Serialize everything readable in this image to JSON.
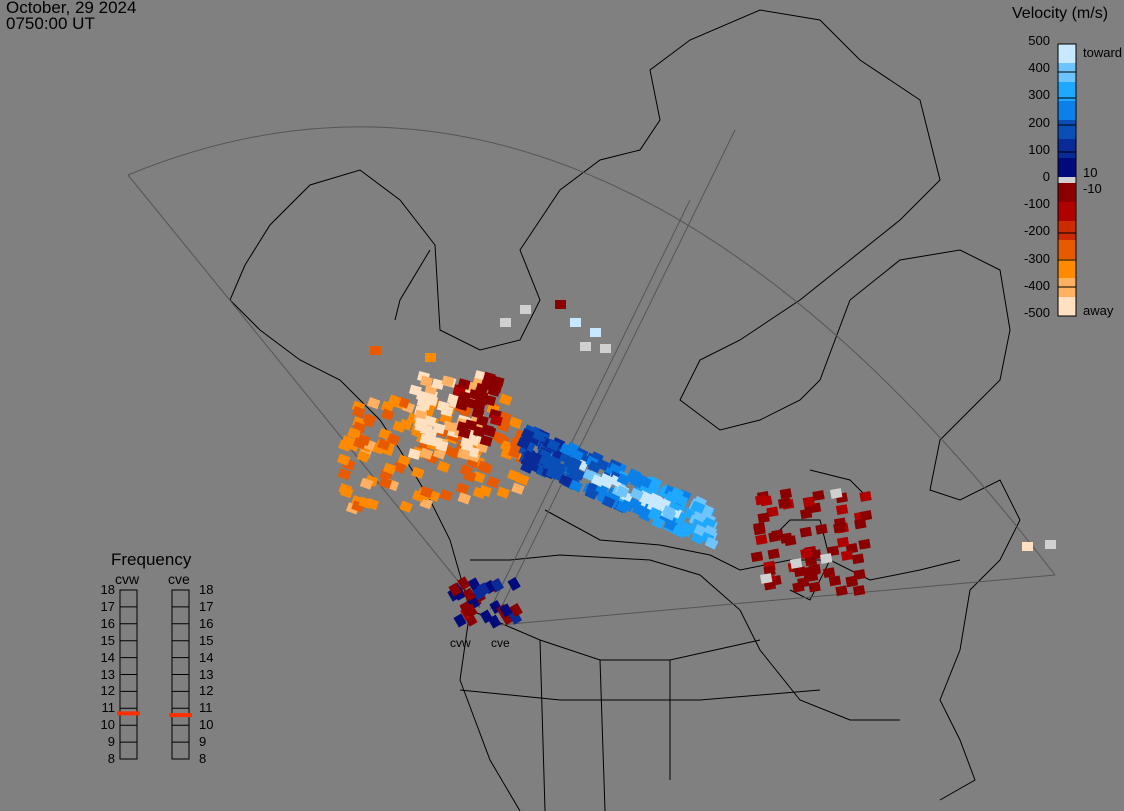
{
  "header": {
    "date": "October, 29 2024",
    "time": "0750:00 UT"
  },
  "colorbar": {
    "title": "Velocity (m/s)",
    "ticks": [
      "500",
      "400",
      "300",
      "200",
      "100",
      "0",
      "-100",
      "-200",
      "-300",
      "-400",
      "-500"
    ],
    "toward_label": "toward",
    "away_label": "away",
    "upper_threshold": "10",
    "lower_threshold": "-10",
    "colors_top_to_bottom": [
      "#c8e8ff",
      "#6ec4ff",
      "#1ea8ff",
      "#0a80e8",
      "#0a4fb8",
      "#0a2a98",
      "#000a7a",
      "#8a0000",
      "#b00000",
      "#cc2a00",
      "#e85a00",
      "#ff8a00",
      "#ffb060",
      "#ffe0c0"
    ],
    "ground_scatter_color": "#d0d0d0"
  },
  "frequency": {
    "title": "Frequency",
    "ticks": [
      "18",
      "17",
      "16",
      "15",
      "14",
      "13",
      "12",
      "11",
      "10",
      "9",
      "8"
    ],
    "radars": [
      {
        "name": "cvw",
        "value_mhz": 10.7
      },
      {
        "name": "cve",
        "value_mhz": 10.6
      }
    ],
    "marker_color": "#ff3000"
  },
  "map": {
    "radar_labels": [
      "cvw",
      "cve"
    ]
  }
}
